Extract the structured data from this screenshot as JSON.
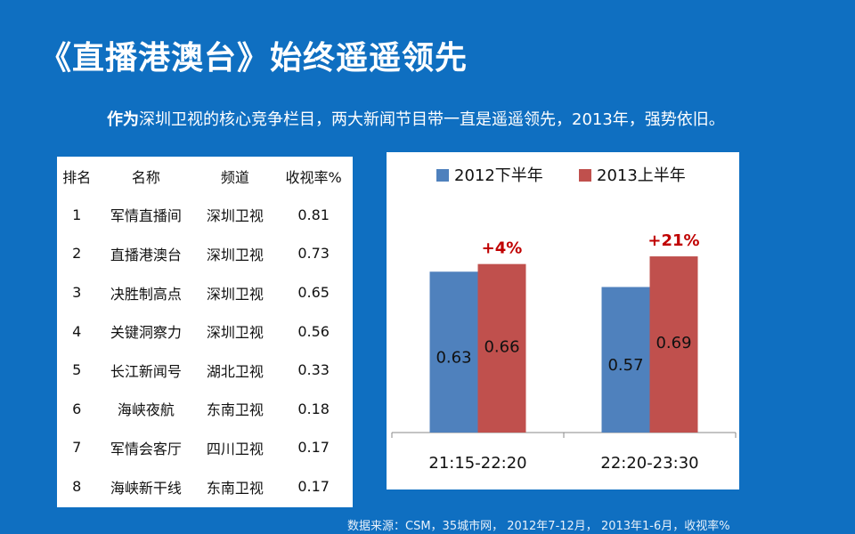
{
  "page": {
    "title": "《直播港澳台》始终遥遥领先",
    "subtitle_bold": "作为",
    "subtitle_rest": "深圳卫视的核心竞争栏目，两大新闻节目带一直是遥遥领先，2013年，强势依旧。",
    "source": "数据来源：CSM，35城市网， 2012年7-12月， 2013年1-6月，收视率%"
  },
  "ranking": {
    "headers": [
      "排名",
      "名称",
      "频道",
      "收视率%"
    ],
    "rows": [
      [
        "1",
        "军情直播间",
        "深圳卫视",
        "0.81"
      ],
      [
        "2",
        "直播港澳台",
        "深圳卫视",
        "0.73"
      ],
      [
        "3",
        "决胜制高点",
        "深圳卫视",
        "0.65"
      ],
      [
        "4",
        "关键洞察力",
        "深圳卫视",
        "0.56"
      ],
      [
        "5",
        "长江新闻号",
        "湖北卫视",
        "0.33"
      ],
      [
        "6",
        "海峡夜航",
        "东南卫视",
        "0.18"
      ],
      [
        "7",
        "军情会客厅",
        "四川卫视",
        "0.17"
      ],
      [
        "8",
        "海峡新干线",
        "东南卫视",
        "0.17"
      ]
    ]
  },
  "chart_data": {
    "type": "bar",
    "categories": [
      "21:15-22:20",
      "22:20-23:30"
    ],
    "series": [
      {
        "name": "2012下半年",
        "values": [
          0.63,
          0.57
        ],
        "color": "#4f81bd"
      },
      {
        "name": "2013上半年",
        "values": [
          0.66,
          0.69
        ],
        "color": "#c0504d"
      }
    ],
    "annotations": [
      "+4%",
      "+21%"
    ],
    "annotation_color": "#c00000",
    "legend": "top",
    "grid": false,
    "ylim": [
      0,
      0.8
    ]
  }
}
